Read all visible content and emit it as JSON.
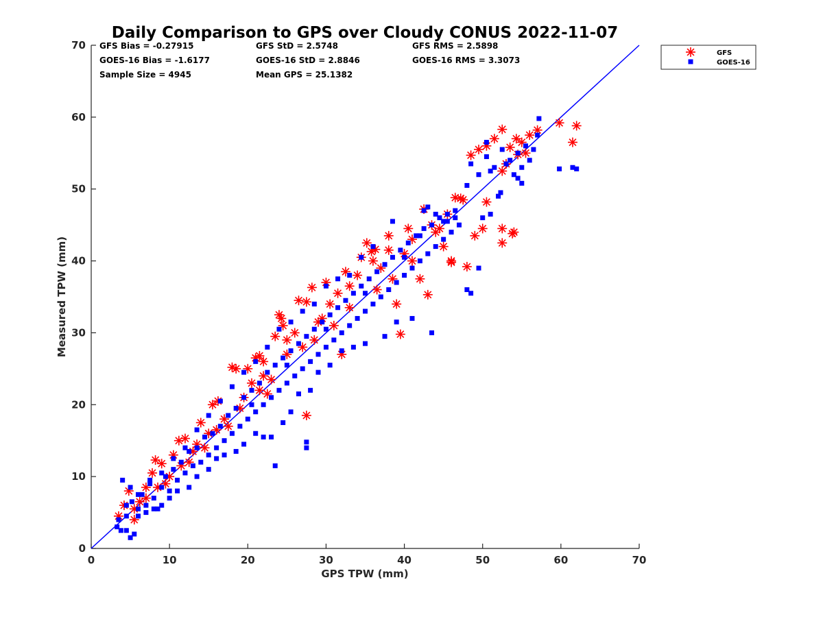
{
  "chart_data": {
    "type": "scatter",
    "title": "Daily Comparison to GPS over Cloudy CONUS 2022-11-07",
    "xlabel": "GPS TPW (mm)",
    "ylabel": "Measured TPW (mm)",
    "xlim": [
      0,
      70
    ],
    "ylim": [
      0,
      70
    ],
    "xticks": [
      "0",
      "10",
      "20",
      "30",
      "40",
      "50",
      "60",
      "70"
    ],
    "yticks": [
      "0",
      "10",
      "20",
      "30",
      "40",
      "50",
      "60",
      "70"
    ],
    "grid": false,
    "legend_position": "outside-top-right",
    "annotations": [
      "GFS Bias = -0.27915",
      "GFS StD = 2.5748",
      "GFS RMS = 2.5898",
      "GOES-16 Bias = -1.6177",
      "GOES-16 StD = 2.8846",
      "GOES-16 RMS = 3.3073",
      "Sample Size = 4945",
      "Mean GPS = 25.1382"
    ],
    "reference_line": {
      "from": [
        0,
        0
      ],
      "to": [
        70,
        70
      ],
      "color": "#0000ff"
    },
    "series": [
      {
        "name": "GFS",
        "marker": "asterisk",
        "color": "#ff0000",
        "points": [
          [
            3.5,
            4.5
          ],
          [
            4.2,
            6.0
          ],
          [
            4.8,
            8.0
          ],
          [
            5.5,
            4.0
          ],
          [
            6.2,
            6.5
          ],
          [
            7,
            8.5
          ],
          [
            7.8,
            10.5
          ],
          [
            8.2,
            12.3
          ],
          [
            9,
            11.8
          ],
          [
            9.5,
            9.0
          ],
          [
            10.5,
            13.0
          ],
          [
            11.2,
            15.0
          ],
          [
            12,
            15.3
          ],
          [
            12.5,
            12.0
          ],
          [
            13.5,
            14.5
          ],
          [
            14,
            17.5
          ],
          [
            15,
            16.0
          ],
          [
            15.5,
            20.0
          ],
          [
            16.2,
            20.5
          ],
          [
            17,
            18.0
          ],
          [
            18,
            25.2
          ],
          [
            18.5,
            25.0
          ],
          [
            19.5,
            21.0
          ],
          [
            20.5,
            23.0
          ],
          [
            21,
            26.5
          ],
          [
            21.5,
            26.8
          ],
          [
            22,
            24.0
          ],
          [
            22.5,
            21.5
          ],
          [
            23.5,
            29.5
          ],
          [
            24,
            32.5
          ],
          [
            24.3,
            32.0
          ],
          [
            25,
            27.0
          ],
          [
            26,
            30.0
          ],
          [
            26.5,
            34.5
          ],
          [
            27.5,
            34.3
          ],
          [
            28.2,
            36.3
          ],
          [
            27.5,
            18.5
          ],
          [
            28.5,
            29.0
          ],
          [
            29.5,
            32.0
          ],
          [
            30.5,
            34.0
          ],
          [
            31.5,
            35.5
          ],
          [
            32,
            27.0
          ],
          [
            33,
            36.5
          ],
          [
            34,
            38.0
          ],
          [
            34.5,
            40.5
          ],
          [
            35.2,
            42.5
          ],
          [
            35.8,
            41.3
          ],
          [
            36.3,
            41.6
          ],
          [
            37,
            39.0
          ],
          [
            38,
            43.5
          ],
          [
            39,
            34.0
          ],
          [
            39.5,
            29.8
          ],
          [
            40.5,
            44.5
          ],
          [
            41,
            40.0
          ],
          [
            42,
            37.5
          ],
          [
            42.5,
            47.2
          ],
          [
            43,
            35.3
          ],
          [
            44,
            44.0
          ],
          [
            45,
            42.0
          ],
          [
            46,
            40.0
          ],
          [
            46.5,
            48.8
          ],
          [
            47.2,
            48.7
          ],
          [
            47.5,
            48.5
          ],
          [
            48,
            39.2
          ],
          [
            49,
            43.5
          ],
          [
            50,
            44.5
          ],
          [
            50.5,
            48.2
          ],
          [
            52.5,
            42.5
          ],
          [
            52.5,
            44.5
          ],
          [
            53.8,
            43.8
          ],
          [
            54,
            44.0
          ],
          [
            48.5,
            54.7
          ],
          [
            49.5,
            55.5
          ],
          [
            50.5,
            56.0
          ],
          [
            51.5,
            57.0
          ],
          [
            52.5,
            58.3
          ],
          [
            53.5,
            55.8
          ],
          [
            54.3,
            57.0
          ],
          [
            55,
            56.5
          ],
          [
            56,
            57.5
          ],
          [
            57,
            58.2
          ],
          [
            59.8,
            59.2
          ],
          [
            61.5,
            56.5
          ],
          [
            62,
            58.8
          ],
          [
            52.5,
            52.5
          ],
          [
            53,
            53.5
          ],
          [
            54.5,
            54.8
          ],
          [
            55.5,
            55.0
          ],
          [
            44.5,
            44.5
          ],
          [
            46,
            39.8
          ],
          [
            36.5,
            36.0
          ],
          [
            38.5,
            37.5
          ],
          [
            40,
            41.0
          ],
          [
            33,
            33.5
          ],
          [
            31,
            31.0
          ],
          [
            29,
            31.5
          ],
          [
            27,
            28.0
          ],
          [
            25,
            29.0
          ],
          [
            23,
            23.5
          ],
          [
            21.5,
            22.0
          ],
          [
            19,
            19.5
          ],
          [
            17.5,
            17.0
          ],
          [
            16,
            16.5
          ],
          [
            14.5,
            14.0
          ],
          [
            13,
            13.5
          ],
          [
            11.5,
            11.5
          ],
          [
            10,
            10.0
          ],
          [
            8.5,
            8.5
          ],
          [
            7,
            7.0
          ],
          [
            5.5,
            5.5
          ],
          [
            20,
            25.0
          ],
          [
            22,
            26.0
          ],
          [
            24.5,
            31.0
          ],
          [
            30,
            37.0
          ],
          [
            32.5,
            38.5
          ],
          [
            36,
            40.0
          ],
          [
            38,
            41.5
          ],
          [
            41,
            43.0
          ],
          [
            43.5,
            45.0
          ],
          [
            45.5,
            46.5
          ]
        ]
      },
      {
        "name": "GOES-16",
        "marker": "square",
        "color": "#0000ff",
        "points": [
          [
            3.3,
            3.0
          ],
          [
            3.8,
            2.5
          ],
          [
            4.5,
            4.5
          ],
          [
            5,
            1.5
          ],
          [
            5.5,
            2.0
          ],
          [
            5.2,
            6.5
          ],
          [
            6,
            5.5
          ],
          [
            6.5,
            7.5
          ],
          [
            7,
            6.0
          ],
          [
            7.5,
            9.0
          ],
          [
            8,
            7.0
          ],
          [
            8.5,
            5.5
          ],
          [
            9,
            8.5
          ],
          [
            9.5,
            10.0
          ],
          [
            10,
            8.0
          ],
          [
            10.5,
            11.0
          ],
          [
            11,
            9.5
          ],
          [
            11.5,
            12.0
          ],
          [
            12,
            10.5
          ],
          [
            12.5,
            13.5
          ],
          [
            13,
            11.5
          ],
          [
            13.5,
            14.0
          ],
          [
            14,
            12.0
          ],
          [
            14.5,
            15.5
          ],
          [
            15,
            13.0
          ],
          [
            15.5,
            16.0
          ],
          [
            16,
            14.0
          ],
          [
            16.5,
            17.0
          ],
          [
            17,
            15.0
          ],
          [
            17.5,
            18.5
          ],
          [
            18,
            16.0
          ],
          [
            18.5,
            19.5
          ],
          [
            19,
            17.0
          ],
          [
            19.5,
            21.0
          ],
          [
            20,
            18.0
          ],
          [
            20.5,
            22.0
          ],
          [
            21,
            19.0
          ],
          [
            21.5,
            23.0
          ],
          [
            22,
            20.0
          ],
          [
            22.5,
            24.5
          ],
          [
            23,
            21.0
          ],
          [
            23.5,
            25.5
          ],
          [
            24,
            22.0
          ],
          [
            24.5,
            26.5
          ],
          [
            25,
            23.0
          ],
          [
            25.5,
            27.5
          ],
          [
            26,
            24.0
          ],
          [
            26.5,
            28.5
          ],
          [
            27,
            25.0
          ],
          [
            27.5,
            29.5
          ],
          [
            28,
            26.0
          ],
          [
            28.5,
            30.5
          ],
          [
            29,
            27.0
          ],
          [
            29.5,
            31.5
          ],
          [
            30,
            28.0
          ],
          [
            30.5,
            32.5
          ],
          [
            31,
            29.0
          ],
          [
            31.5,
            33.5
          ],
          [
            32,
            30.0
          ],
          [
            32.5,
            34.5
          ],
          [
            33,
            31.0
          ],
          [
            33.5,
            35.5
          ],
          [
            34,
            32.0
          ],
          [
            34.5,
            36.5
          ],
          [
            35,
            33.0
          ],
          [
            35.5,
            37.5
          ],
          [
            36,
            34.0
          ],
          [
            36.5,
            38.5
          ],
          [
            37,
            35.0
          ],
          [
            37.5,
            39.5
          ],
          [
            38,
            36.0
          ],
          [
            38.5,
            40.5
          ],
          [
            39,
            37.0
          ],
          [
            39.5,
            41.5
          ],
          [
            40,
            38.0
          ],
          [
            40.5,
            42.5
          ],
          [
            41,
            39.0
          ],
          [
            41.5,
            43.5
          ],
          [
            42,
            40.0
          ],
          [
            42.5,
            44.5
          ],
          [
            43,
            41.0
          ],
          [
            43.5,
            45.0
          ],
          [
            44,
            42.0
          ],
          [
            44.5,
            46.0
          ],
          [
            45,
            43.0
          ],
          [
            45.5,
            46.5
          ],
          [
            46,
            44.0
          ],
          [
            46.5,
            47.0
          ],
          [
            47,
            45.0
          ],
          [
            48,
            36.0
          ],
          [
            48.5,
            35.5
          ],
          [
            49.5,
            39.0
          ],
          [
            50,
            46.0
          ],
          [
            51,
            46.5
          ],
          [
            52,
            49.0
          ],
          [
            52.3,
            49.5
          ],
          [
            53,
            53.5
          ],
          [
            54,
            52.0
          ],
          [
            55,
            53.0
          ],
          [
            56,
            54.0
          ],
          [
            57,
            57.5
          ],
          [
            57.2,
            59.8
          ],
          [
            56.5,
            55.5
          ],
          [
            55.5,
            56.0
          ],
          [
            54.5,
            55.0
          ],
          [
            53.5,
            54.0
          ],
          [
            52.5,
            55.5
          ],
          [
            51.5,
            53.0
          ],
          [
            50.5,
            54.5
          ],
          [
            49.5,
            52.0
          ],
          [
            48.5,
            53.5
          ],
          [
            48,
            50.5
          ],
          [
            50.5,
            56.5
          ],
          [
            51,
            52.5
          ],
          [
            59.8,
            52.8
          ],
          [
            61.5,
            53.0
          ],
          [
            62,
            52.8
          ],
          [
            54.5,
            51.5
          ],
          [
            55,
            50.8
          ],
          [
            43.5,
            30.0
          ],
          [
            41,
            32.0
          ],
          [
            39,
            31.5
          ],
          [
            37.5,
            29.5
          ],
          [
            35,
            28.5
          ],
          [
            33.5,
            28.0
          ],
          [
            32,
            27.5
          ],
          [
            30.5,
            25.5
          ],
          [
            29,
            24.5
          ],
          [
            28,
            22.0
          ],
          [
            26.5,
            21.5
          ],
          [
            25.5,
            19.0
          ],
          [
            24.5,
            17.5
          ],
          [
            23,
            15.5
          ],
          [
            22,
            15.5
          ],
          [
            21,
            16.0
          ],
          [
            19.5,
            14.5
          ],
          [
            18.5,
            13.5
          ],
          [
            17,
            13.0
          ],
          [
            16,
            12.5
          ],
          [
            15,
            11.0
          ],
          [
            13.5,
            10.0
          ],
          [
            12.5,
            8.5
          ],
          [
            11,
            8.0
          ],
          [
            10,
            7.0
          ],
          [
            9,
            6.0
          ],
          [
            8,
            5.5
          ],
          [
            7,
            5.0
          ],
          [
            6,
            4.5
          ],
          [
            4.5,
            2.5
          ],
          [
            3.5,
            4.0
          ],
          [
            27.5,
            14.0
          ],
          [
            27.5,
            14.8
          ],
          [
            23.5,
            11.5
          ],
          [
            42,
            43.5
          ],
          [
            44,
            46.5
          ],
          [
            45.5,
            45.5
          ],
          [
            46.5,
            46.0
          ],
          [
            43,
            47.5
          ],
          [
            42.5,
            47.0
          ],
          [
            38.5,
            45.5
          ],
          [
            36,
            42.0
          ],
          [
            34.5,
            40.5
          ],
          [
            33,
            38.0
          ],
          [
            31.5,
            37.5
          ],
          [
            30,
            36.5
          ],
          [
            28.5,
            34.0
          ],
          [
            27,
            33.0
          ],
          [
            25.5,
            31.5
          ],
          [
            24,
            30.5
          ],
          [
            22.5,
            28.0
          ],
          [
            21,
            26.0
          ],
          [
            19.5,
            24.5
          ],
          [
            18,
            22.5
          ],
          [
            16.5,
            20.5
          ],
          [
            15,
            18.5
          ],
          [
            13.5,
            16.5
          ],
          [
            12,
            14.0
          ],
          [
            10.5,
            12.5
          ],
          [
            9,
            10.5
          ],
          [
            7.5,
            9.5
          ],
          [
            6,
            7.5
          ],
          [
            4.5,
            6.0
          ],
          [
            4,
            9.5
          ],
          [
            5,
            8.5
          ],
          [
            20.5,
            20.0
          ],
          [
            25,
            25.5
          ],
          [
            30,
            30.5
          ],
          [
            35,
            35.5
          ],
          [
            40,
            40.5
          ],
          [
            45,
            45.5
          ]
        ]
      }
    ]
  }
}
